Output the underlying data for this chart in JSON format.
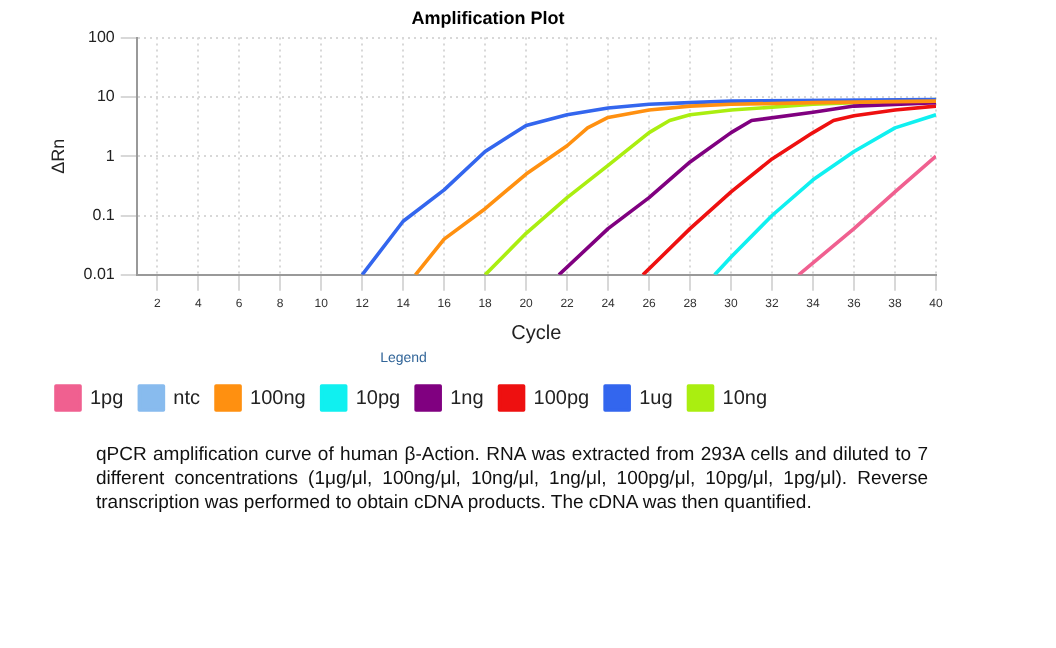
{
  "chart_data": {
    "type": "line",
    "title": "Amplification Plot",
    "xlabel": "Cycle",
    "ylabel": "ΔRn",
    "legend_title": "Legend",
    "legend": "bottom",
    "log": "y",
    "grid": true,
    "marker": "none",
    "line_style": "solid",
    "xlim": [
      1,
      40
    ],
    "xticks": [
      2,
      4,
      6,
      8,
      10,
      12,
      14,
      16,
      18,
      20,
      22,
      24,
      26,
      28,
      30,
      32,
      34,
      36,
      38,
      40
    ],
    "ylim": [
      0.01,
      100
    ],
    "yticks": [
      0.01,
      0.1,
      1,
      10,
      100
    ],
    "series": [
      {
        "name": "1pg",
        "color": "#f06090",
        "x": [
          33.3,
          36,
          38,
          40
        ],
        "values": [
          0.01,
          0.06,
          0.25,
          1
        ]
      },
      {
        "name": "ntc",
        "color": "#88bbee"
      },
      {
        "name": "100ng",
        "color": "#ff9010",
        "x": [
          14.6,
          16,
          18,
          20,
          22,
          23,
          24,
          26,
          28,
          30,
          34,
          40
        ],
        "values": [
          0.01,
          0.04,
          0.13,
          0.5,
          1.5,
          3,
          4.5,
          6,
          7,
          7.5,
          8,
          8.5
        ]
      },
      {
        "name": "10pg",
        "color": "#10f0f0",
        "x": [
          29.2,
          30,
          32,
          34,
          36,
          38,
          40
        ],
        "values": [
          0.01,
          0.02,
          0.1,
          0.4,
          1.2,
          3,
          5
        ]
      },
      {
        "name": "1ng",
        "color": "#800080",
        "x": [
          21.6,
          24,
          26,
          28,
          30,
          31,
          34,
          36,
          40
        ],
        "values": [
          0.01,
          0.06,
          0.2,
          0.8,
          2.5,
          4,
          5.5,
          7,
          8
        ]
      },
      {
        "name": "100pg",
        "color": "#ee1010",
        "x": [
          25.7,
          28,
          30,
          32,
          34,
          35,
          36,
          38,
          40
        ],
        "values": [
          0.01,
          0.06,
          0.25,
          0.9,
          2.5,
          4,
          4.8,
          6,
          7
        ]
      },
      {
        "name": "1ug",
        "color": "#3366ee",
        "x": [
          12,
          14,
          16,
          18,
          20,
          22,
          24,
          26,
          28,
          30,
          40
        ],
        "values": [
          0.01,
          0.08,
          0.27,
          1.2,
          3.3,
          5,
          6.5,
          7.5,
          8,
          8.5,
          9
        ]
      },
      {
        "name": "10ng",
        "color": "#aaee10",
        "x": [
          18,
          20,
          22,
          24,
          26,
          27,
          28,
          30,
          34,
          40
        ],
        "values": [
          0.01,
          0.05,
          0.2,
          0.7,
          2.5,
          4,
          5,
          6,
          7.5,
          9
        ]
      }
    ],
    "annotations": [
      "qPCR amplification curve of human β-Action. RNA was extracted from 293A cells and diluted to 7 different concentrations (1μg/μl, 100ng/μl, 10ng/μl, 1ng/μl, 100pg/μl, 10pg/μl, 1pg/μl). Reverse transcription was performed to obtain cDNA products. The cDNA was then quantified."
    ]
  }
}
